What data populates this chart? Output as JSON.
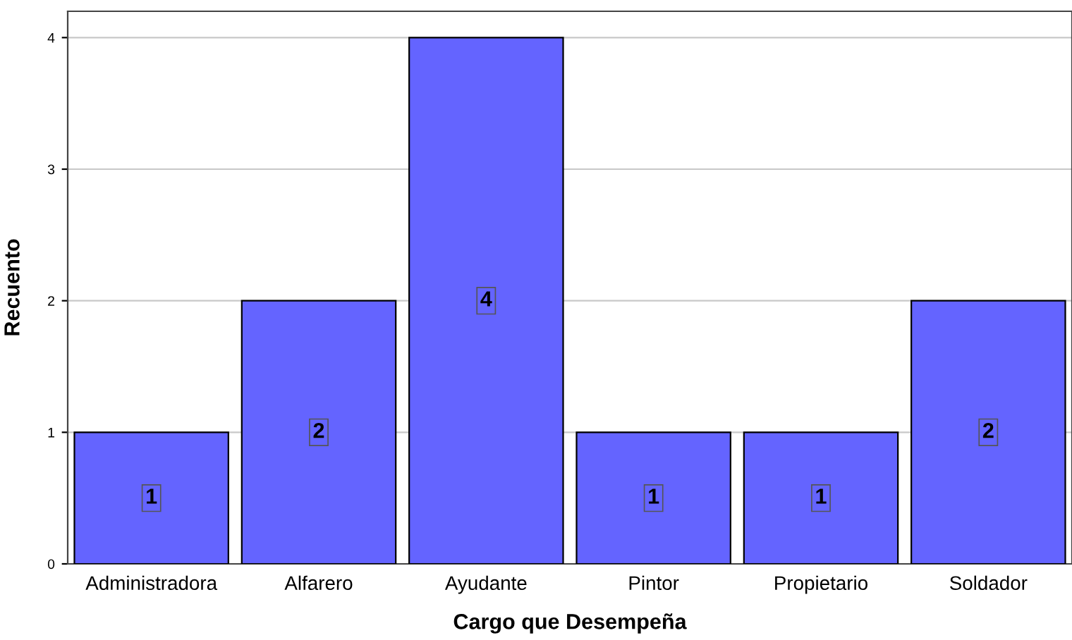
{
  "chart_data": {
    "type": "bar",
    "xlabel": "Cargo que Desempeña",
    "ylabel": "Recuento",
    "categories": [
      "Administradora",
      "Alfarero",
      "Ayudante",
      "Pintor",
      "Propietario",
      "Soldador"
    ],
    "values": [
      1,
      2,
      4,
      1,
      1,
      2
    ],
    "color": "#6464ff",
    "ylim": [
      0,
      4.2
    ],
    "yticks": [
      0,
      1,
      2,
      3,
      4
    ],
    "grid": "y",
    "data_labels": true,
    "legend": false
  }
}
